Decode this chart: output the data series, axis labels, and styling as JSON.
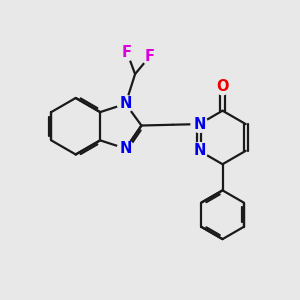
{
  "bg_color": "#e8e8e8",
  "bond_color": "#1a1a1a",
  "N_color": "#0000ee",
  "O_color": "#ee0000",
  "F_color": "#dd00dd",
  "lw": 1.6,
  "dbo": 0.07,
  "fs": 10.5,
  "xlim": [
    0.0,
    10.0
  ],
  "ylim": [
    0.5,
    9.5
  ]
}
